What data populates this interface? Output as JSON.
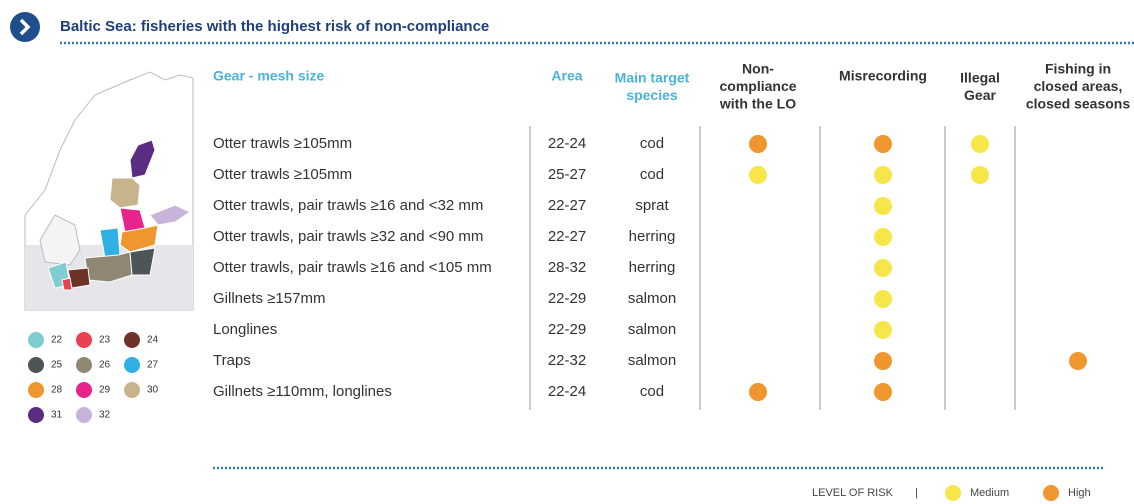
{
  "header": {
    "title": "Baltic Sea: fisheries with the highest risk of non-compliance"
  },
  "table": {
    "columns": [
      [
        "Gear - mesh size"
      ],
      [
        "Area"
      ],
      [
        "Main target",
        "species"
      ],
      [
        "Non-",
        "compliance",
        "with the LO"
      ],
      [
        "Misrecording"
      ],
      [
        "Illegal",
        "Gear"
      ],
      [
        "Fishing in",
        "closed areas,",
        "closed seasons"
      ]
    ],
    "rows": [
      {
        "gear": "Otter trawls ≥105mm",
        "area": "22-24",
        "species": "cod",
        "risks": [
          "High",
          "High",
          "Medium",
          null
        ]
      },
      {
        "gear": "Otter trawls ≥105mm",
        "area": "25-27",
        "species": "cod",
        "risks": [
          "Medium",
          "Medium",
          "Medium",
          null
        ]
      },
      {
        "gear": "Otter trawls, pair trawls ≥16 and <32 mm",
        "area": "22-27",
        "species": "sprat",
        "risks": [
          null,
          "Medium",
          null,
          null
        ]
      },
      {
        "gear": "Otter trawls, pair trawls ≥32 and <90 mm",
        "area": "22-27",
        "species": "herring",
        "risks": [
          null,
          "Medium",
          null,
          null
        ]
      },
      {
        "gear": "Otter trawls, pair trawls ≥16 and <105 mm",
        "area": "28-32",
        "species": "herring",
        "risks": [
          null,
          "Medium",
          null,
          null
        ]
      },
      {
        "gear": "Gillnets ≥157mm",
        "area": "22-29",
        "species": "salmon",
        "risks": [
          null,
          "Medium",
          null,
          null
        ]
      },
      {
        "gear": "Longlines",
        "area": "22-29",
        "species": "salmon",
        "risks": [
          null,
          "Medium",
          null,
          null
        ]
      },
      {
        "gear": "Traps",
        "area": "22-32",
        "species": "salmon",
        "risks": [
          null,
          "High",
          null,
          "High"
        ]
      },
      {
        "gear": "Gillnets ≥110mm, longlines",
        "area": "22-24",
        "species": "cod",
        "risks": [
          "High",
          "High",
          null,
          null
        ]
      }
    ]
  },
  "map_legend": [
    {
      "label": 22,
      "color": "#7fcdd0"
    },
    {
      "label": 23,
      "color": "#e8424f"
    },
    {
      "label": 24,
      "color": "#6e3328"
    },
    {
      "label": 25,
      "color": "#4d5556"
    },
    {
      "label": 26,
      "color": "#8f8674"
    },
    {
      "label": 27,
      "color": "#2fb0e4"
    },
    {
      "label": 28,
      "color": "#f0962e"
    },
    {
      "label": 29,
      "color": "#e8238c"
    },
    {
      "label": 30,
      "color": "#c8b48c"
    },
    {
      "label": 31,
      "color": "#5a2d82"
    },
    {
      "label": 32,
      "color": "#c9b3d8"
    }
  ],
  "risk_legend": {
    "title": "LEVEL OF RISK",
    "levels": [
      {
        "name": "Medium",
        "color": "#f7e64a"
      },
      {
        "name": "High",
        "color": "#f0962e"
      }
    ]
  }
}
